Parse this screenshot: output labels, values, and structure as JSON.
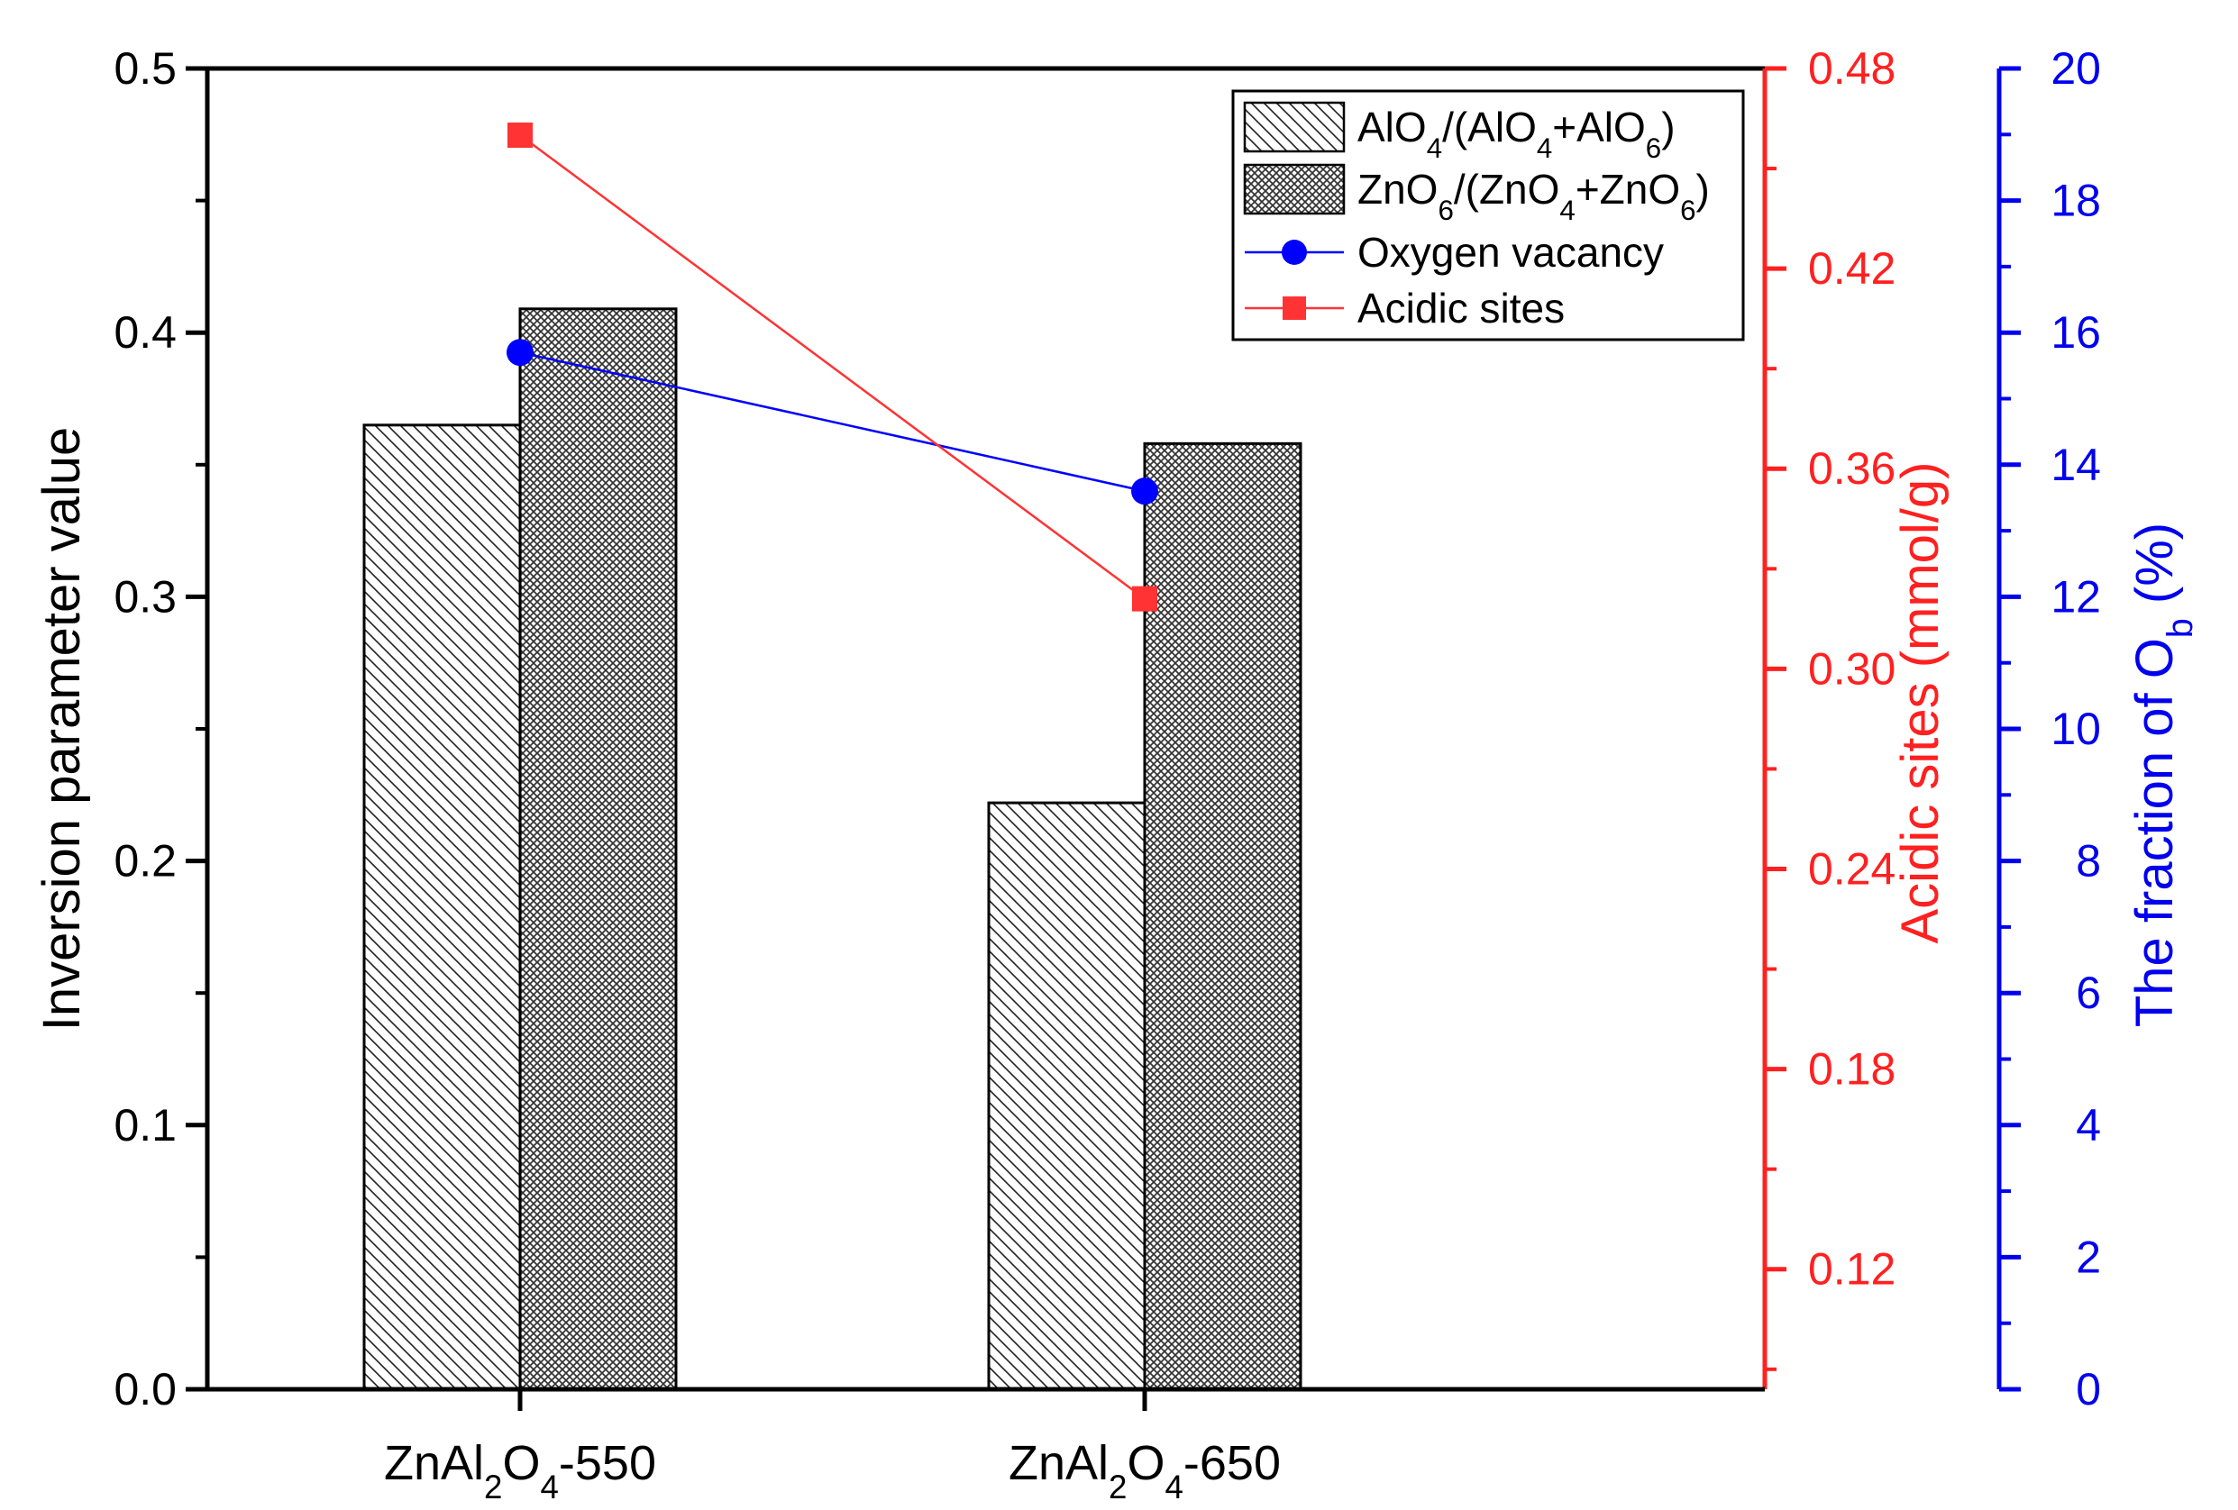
{
  "chart_data": {
    "type": "bar",
    "categories": [
      "ZnAl2O4-550",
      "ZnAl2O4-650"
    ],
    "category_labels": [
      {
        "base": "ZnAl",
        "s1": "2",
        "mid": "O",
        "s2": "4",
        "tail": "-550"
      },
      {
        "base": "ZnAl",
        "s1": "2",
        "mid": "O",
        "s2": "4",
        "tail": "-650"
      }
    ],
    "series": [
      {
        "name": "AlO4/(AlO4+AlO6)",
        "type": "bar",
        "pattern": "diagonal-hatch",
        "axis": "left",
        "values": [
          0.365,
          0.222
        ]
      },
      {
        "name": "ZnO6/(ZnO4+ZnO6)",
        "type": "bar",
        "pattern": "crosshatch",
        "axis": "left",
        "values": [
          0.409,
          0.358
        ]
      },
      {
        "name": "Oxygen vacancy",
        "type": "line",
        "marker": "circle",
        "color": "#0000ff",
        "axis": "right2",
        "values": [
          15.7,
          13.6
        ]
      },
      {
        "name": "Acidic sites",
        "type": "line",
        "marker": "square",
        "color": "#ff3333",
        "axis": "right1",
        "values": [
          0.46,
          0.321
        ]
      }
    ],
    "axes": {
      "left": {
        "label": "Inversion parameter value",
        "ylim": [
          0,
          0.5
        ],
        "ticks": [
          "0.0",
          "0.1",
          "0.2",
          "0.3",
          "0.4",
          "0.5"
        ],
        "color": "#000000"
      },
      "right1": {
        "label": "Acidic sites (mmol/g)",
        "ylim": [
          0.084,
          0.48
        ],
        "ticks": [
          "0.12",
          "0.18",
          "0.24",
          "0.30",
          "0.36",
          "0.42",
          "0.48"
        ],
        "color": "#ff2020"
      },
      "right2": {
        "label_main": "The fraction of O",
        "label_sub": "b",
        "label_tail": " (%)",
        "ylim": [
          0,
          20
        ],
        "ticks": [
          "0",
          "2",
          "4",
          "6",
          "8",
          "10",
          "12",
          "14",
          "16",
          "18",
          "20"
        ],
        "color": "#0000ee"
      }
    },
    "legend": {
      "position": "top-right",
      "entries": [
        {
          "parts": [
            [
              "AlO",
              ""
            ],
            [
              "4",
              "sub"
            ],
            [
              "/(AlO",
              ""
            ],
            [
              "4",
              "sub"
            ],
            [
              "+AlO",
              ""
            ],
            [
              "6",
              "sub"
            ],
            [
              ")",
              ""
            ]
          ]
        },
        {
          "parts": [
            [
              "ZnO",
              ""
            ],
            [
              "6",
              "sub"
            ],
            [
              "/(ZnO",
              ""
            ],
            [
              "4",
              "sub"
            ],
            [
              "+ZnO",
              ""
            ],
            [
              "6",
              "sub"
            ],
            [
              ")",
              ""
            ]
          ]
        },
        {
          "parts": [
            [
              "Oxygen vacancy",
              ""
            ]
          ]
        },
        {
          "parts": [
            [
              "Acidic sites",
              ""
            ]
          ]
        }
      ]
    },
    "grid": false
  }
}
